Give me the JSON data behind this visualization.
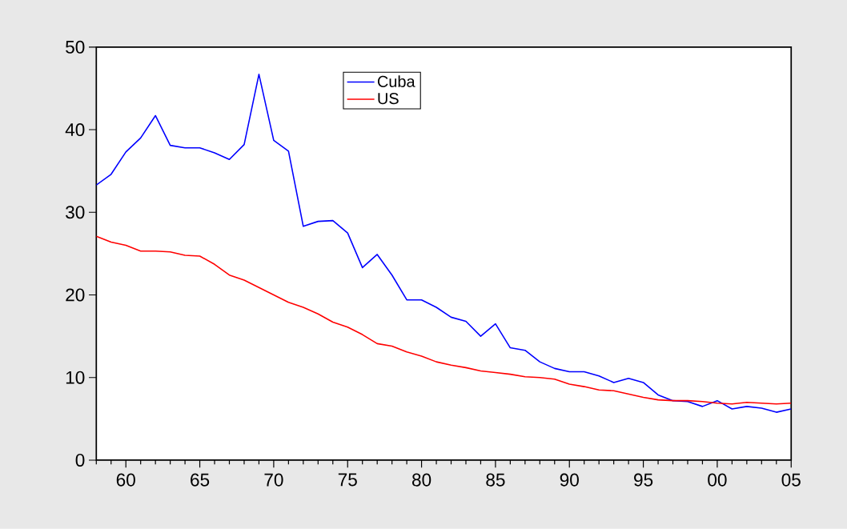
{
  "chart_data": {
    "type": "line",
    "x": [
      1958,
      1959,
      1960,
      1961,
      1962,
      1963,
      1964,
      1965,
      1966,
      1967,
      1968,
      1969,
      1970,
      1971,
      1972,
      1973,
      1974,
      1975,
      1976,
      1977,
      1978,
      1979,
      1980,
      1981,
      1982,
      1983,
      1984,
      1985,
      1986,
      1987,
      1988,
      1989,
      1990,
      1991,
      1992,
      1993,
      1994,
      1995,
      1996,
      1997,
      1998,
      1999,
      2000,
      2001,
      2002,
      2003,
      2004,
      2005
    ],
    "series": [
      {
        "name": "Cuba",
        "color": "#0000ff",
        "values": [
          33.3,
          34.6,
          37.3,
          39.0,
          41.7,
          38.1,
          37.8,
          37.8,
          37.2,
          36.4,
          38.2,
          46.7,
          38.7,
          37.4,
          28.3,
          28.9,
          29.0,
          27.5,
          23.3,
          24.9,
          22.4,
          19.4,
          19.4,
          18.5,
          17.3,
          16.8,
          15.0,
          16.5,
          13.6,
          13.3,
          11.9,
          11.1,
          10.7,
          10.7,
          10.2,
          9.4,
          9.9,
          9.4,
          7.9,
          7.2,
          7.1,
          6.5,
          7.2,
          6.2,
          6.5,
          6.3,
          5.8,
          6.2
        ]
      },
      {
        "name": "US",
        "color": "#ff0000",
        "values": [
          27.1,
          26.4,
          26.0,
          25.3,
          25.3,
          25.2,
          24.8,
          24.7,
          23.7,
          22.4,
          21.8,
          20.9,
          20.0,
          19.1,
          18.5,
          17.7,
          16.7,
          16.1,
          15.2,
          14.1,
          13.8,
          13.1,
          12.6,
          11.9,
          11.5,
          11.2,
          10.8,
          10.6,
          10.4,
          10.1,
          10.0,
          9.8,
          9.2,
          8.9,
          8.5,
          8.4,
          8.0,
          7.6,
          7.3,
          7.2,
          7.2,
          7.1,
          6.9,
          6.8,
          7.0,
          6.9,
          6.8,
          6.9
        ]
      }
    ],
    "xlim": [
      1958,
      2005
    ],
    "xticks": [
      {
        "value": 1958,
        "label": null
      },
      {
        "value": 1959,
        "label": null
      },
      {
        "value": 1960,
        "label": "60"
      },
      {
        "value": 1961,
        "label": null
      },
      {
        "value": 1962,
        "label": null
      },
      {
        "value": 1963,
        "label": null
      },
      {
        "value": 1964,
        "label": null
      },
      {
        "value": 1965,
        "label": "65"
      },
      {
        "value": 1966,
        "label": null
      },
      {
        "value": 1967,
        "label": null
      },
      {
        "value": 1968,
        "label": null
      },
      {
        "value": 1969,
        "label": null
      },
      {
        "value": 1970,
        "label": "70"
      },
      {
        "value": 1971,
        "label": null
      },
      {
        "value": 1972,
        "label": null
      },
      {
        "value": 1973,
        "label": null
      },
      {
        "value": 1974,
        "label": null
      },
      {
        "value": 1975,
        "label": "75"
      },
      {
        "value": 1976,
        "label": null
      },
      {
        "value": 1977,
        "label": null
      },
      {
        "value": 1978,
        "label": null
      },
      {
        "value": 1979,
        "label": null
      },
      {
        "value": 1980,
        "label": "80"
      },
      {
        "value": 1981,
        "label": null
      },
      {
        "value": 1982,
        "label": null
      },
      {
        "value": 1983,
        "label": null
      },
      {
        "value": 1984,
        "label": null
      },
      {
        "value": 1985,
        "label": "85"
      },
      {
        "value": 1986,
        "label": null
      },
      {
        "value": 1987,
        "label": null
      },
      {
        "value": 1988,
        "label": null
      },
      {
        "value": 1989,
        "label": null
      },
      {
        "value": 1990,
        "label": "90"
      },
      {
        "value": 1991,
        "label": null
      },
      {
        "value": 1992,
        "label": null
      },
      {
        "value": 1993,
        "label": null
      },
      {
        "value": 1994,
        "label": null
      },
      {
        "value": 1995,
        "label": "95"
      },
      {
        "value": 1996,
        "label": null
      },
      {
        "value": 1997,
        "label": null
      },
      {
        "value": 1998,
        "label": null
      },
      {
        "value": 1999,
        "label": null
      },
      {
        "value": 2000,
        "label": "00"
      },
      {
        "value": 2001,
        "label": null
      },
      {
        "value": 2002,
        "label": null
      },
      {
        "value": 2003,
        "label": null
      },
      {
        "value": 2004,
        "label": null
      },
      {
        "value": 2005,
        "label": "05"
      }
    ],
    "ylim": [
      0,
      50
    ],
    "yticks": [
      0,
      10,
      20,
      30,
      40,
      50
    ],
    "legend": "top",
    "line_style": "solid",
    "marker": "none"
  }
}
